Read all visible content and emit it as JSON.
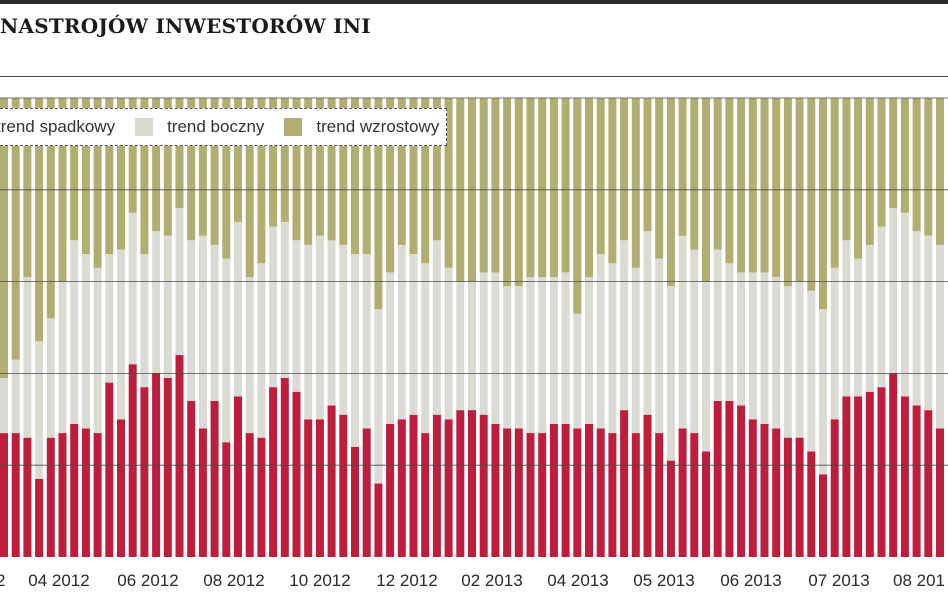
{
  "title": "NASTROJÓW INWESTORÓW INI",
  "legend": {
    "bearish_label": "trend spadkowy",
    "sideways_label": "trend boczny",
    "bullish_label": "trend wzrostowy"
  },
  "colors": {
    "bearish": "#be1e3c",
    "sideways": "#dcdbd3",
    "bullish": "#b2ae72",
    "grid": "#4a4a4a",
    "axis_text": "#2a2a2a"
  },
  "chart_data": {
    "type": "bar",
    "stacked": true,
    "ylim": [
      0,
      100
    ],
    "grid": true,
    "x_tick_labels": [
      "2",
      "04 2012",
      "06 2012",
      "08 2012",
      "10 2012",
      "12 2012",
      "02 2013",
      "04 2013",
      "05 2013",
      "06 2013",
      "07 2013",
      "08 201"
    ],
    "series": [
      {
        "name": "trend spadkowy",
        "values": [
          27,
          27,
          26,
          17,
          26,
          27,
          29,
          28,
          27,
          38,
          30,
          42,
          37,
          40,
          39,
          44,
          34,
          28,
          34,
          25,
          35,
          27,
          26,
          37,
          39,
          36,
          30,
          30,
          33,
          31,
          24,
          28,
          16,
          29,
          30,
          31,
          27,
          31,
          30,
          32,
          32,
          31,
          29,
          28,
          28,
          27,
          27,
          29,
          29,
          28,
          29,
          28,
          27,
          32,
          27,
          31,
          27,
          21,
          28,
          27,
          23,
          34,
          34,
          33,
          30,
          29,
          28,
          26,
          26,
          23,
          18,
          30,
          35,
          35,
          36,
          37,
          40,
          35,
          33,
          32,
          28
        ]
      },
      {
        "name": "trend boczny",
        "values": [
          12,
          16,
          35,
          30,
          26,
          33,
          40,
          38,
          36,
          28,
          37,
          33,
          29,
          31,
          31,
          32,
          35,
          42,
          34,
          40,
          38,
          34,
          38,
          35,
          34,
          33,
          38,
          40,
          36,
          37,
          42,
          38,
          38,
          33,
          38,
          35,
          37,
          38,
          33,
          28,
          28,
          31,
          33,
          31,
          31,
          34,
          34,
          32,
          33,
          25,
          32,
          38,
          37,
          37,
          36,
          40,
          38,
          38,
          42,
          40,
          37,
          33,
          30,
          29,
          32,
          33,
          33,
          33,
          34,
          35,
          36,
          33,
          34,
          30,
          32,
          35,
          36,
          40,
          38,
          38,
          40
        ]
      },
      {
        "name": "trend wzrostowy",
        "values": [
          61,
          57,
          39,
          53,
          48,
          40,
          31,
          34,
          37,
          34,
          33,
          25,
          34,
          29,
          30,
          24,
          31,
          30,
          32,
          35,
          27,
          39,
          36,
          28,
          27,
          31,
          32,
          30,
          31,
          32,
          34,
          34,
          46,
          38,
          32,
          34,
          36,
          31,
          37,
          40,
          40,
          38,
          38,
          41,
          41,
          39,
          39,
          39,
          38,
          47,
          39,
          34,
          36,
          31,
          37,
          29,
          35,
          41,
          30,
          33,
          40,
          33,
          36,
          38,
          38,
          38,
          39,
          41,
          40,
          42,
          46,
          37,
          31,
          35,
          32,
          28,
          24,
          25,
          29,
          30,
          32
        ]
      }
    ]
  }
}
